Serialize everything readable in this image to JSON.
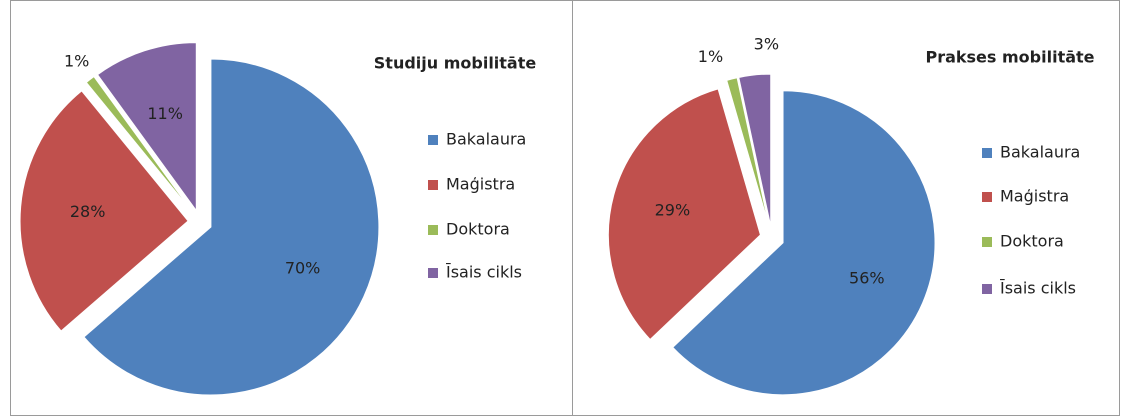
{
  "chart_data": [
    {
      "type": "pie",
      "title": "Studiju mobilitāte",
      "categories": [
        "Bakalaura",
        "Maģistra",
        "Doktora",
        "Īsais cikls"
      ],
      "values": [
        70,
        28,
        1,
        11
      ],
      "value_labels": [
        "70%",
        "28%",
        "1%",
        "11%"
      ],
      "colors": [
        "#4f81bd",
        "#c0504d",
        "#9bbb59",
        "#8064a2"
      ]
    },
    {
      "type": "pie",
      "title": "Prakses mobilitāte",
      "categories": [
        "Bakalaura",
        "Maģistra",
        "Doktora",
        "Īsais cikls"
      ],
      "values": [
        56,
        29,
        1,
        3
      ],
      "value_labels": [
        "56%",
        "29%",
        "1%",
        "3%"
      ],
      "colors": [
        "#4f81bd",
        "#c0504d",
        "#9bbb59",
        "#8064a2"
      ]
    }
  ]
}
